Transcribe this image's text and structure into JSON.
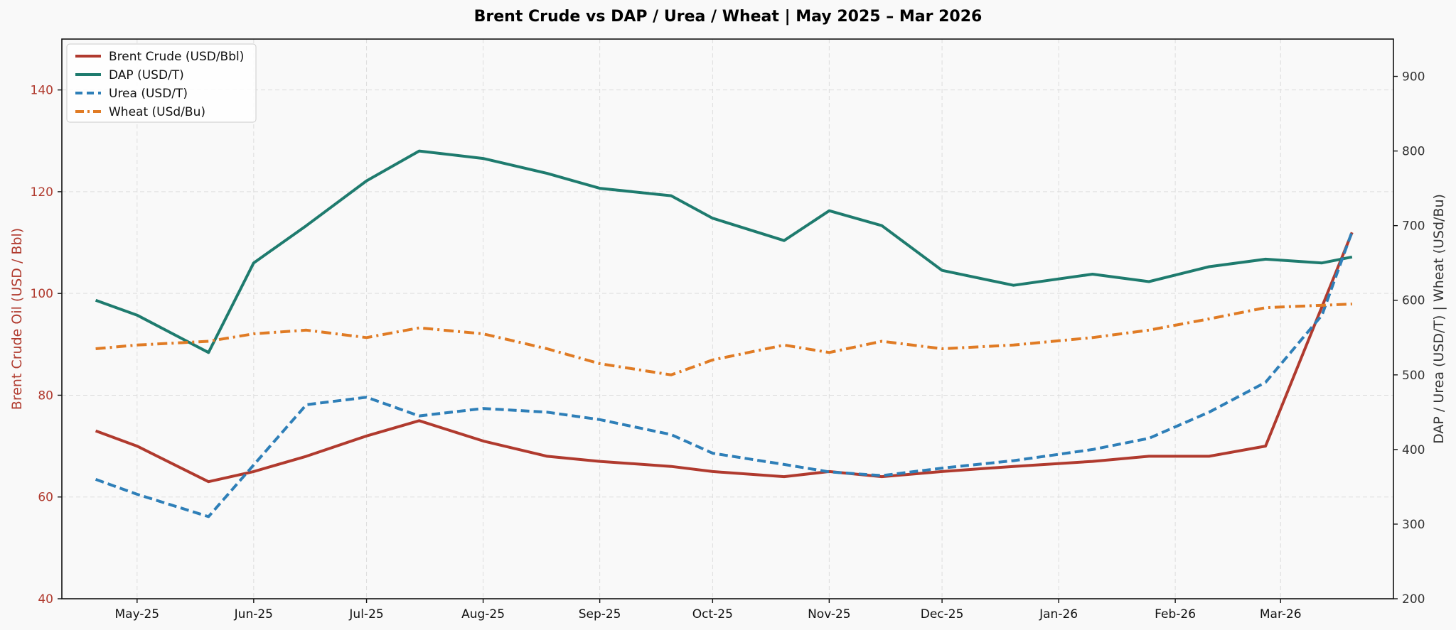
{
  "chart_data": {
    "type": "line",
    "title": "Brent Crude vs DAP / Urea / Wheat  |  May 2025 – Mar 2026",
    "xlabel": "",
    "ylabel_left": "Brent Crude Oil (USD / Bbl)",
    "ylabel_right": "DAP / Urea (USD/T)  |  Wheat (USd/Bu)",
    "ylim_left": [
      40,
      150
    ],
    "ylim_right": [
      200,
      950
    ],
    "yticks_left": [
      40,
      60,
      80,
      100,
      120,
      140
    ],
    "yticks_right": [
      200,
      300,
      400,
      500,
      600,
      700,
      800,
      900
    ],
    "xlim": [
      "2025-04-11",
      "2026-03-31"
    ],
    "xticks": [
      {
        "date": "2025-05-01",
        "label": "May-25"
      },
      {
        "date": "2025-06-01",
        "label": "Jun-25"
      },
      {
        "date": "2025-07-01",
        "label": "Jul-25"
      },
      {
        "date": "2025-08-01",
        "label": "Aug-25"
      },
      {
        "date": "2025-09-01",
        "label": "Sep-25"
      },
      {
        "date": "2025-10-01",
        "label": "Oct-25"
      },
      {
        "date": "2025-11-01",
        "label": "Nov-25"
      },
      {
        "date": "2025-12-01",
        "label": "Dec-25"
      },
      {
        "date": "2026-01-01",
        "label": "Jan-26"
      },
      {
        "date": "2026-02-01",
        "label": "Feb-26"
      },
      {
        "date": "2026-03-01",
        "label": "Mar-26"
      }
    ],
    "grid": true,
    "legend_position": "top-left",
    "series": [
      {
        "name": "Brent Crude (USD/Bbl)",
        "axis": "left",
        "color": "#b03a2e",
        "style": "solid",
        "x": [
          "2025-04-20",
          "2025-05-01",
          "2025-05-20",
          "2025-06-01",
          "2025-06-15",
          "2025-07-01",
          "2025-07-15",
          "2025-08-01",
          "2025-08-18",
          "2025-09-01",
          "2025-09-20",
          "2025-10-01",
          "2025-10-20",
          "2025-11-01",
          "2025-11-15",
          "2025-12-01",
          "2025-12-20",
          "2026-01-10",
          "2026-01-25",
          "2026-02-10",
          "2026-02-25",
          "2026-03-20"
        ],
        "values": [
          73,
          70,
          63,
          65,
          68,
          72,
          75,
          71,
          68,
          67,
          66,
          65,
          64,
          65,
          64,
          65,
          66,
          67,
          68,
          68,
          70,
          112
        ]
      },
      {
        "name": "DAP (USD/T)",
        "axis": "right",
        "color": "#1e7b6e",
        "style": "solid",
        "x": [
          "2025-04-20",
          "2025-05-01",
          "2025-05-20",
          "2025-06-01",
          "2025-06-15",
          "2025-07-01",
          "2025-07-15",
          "2025-08-01",
          "2025-08-18",
          "2025-09-01",
          "2025-09-20",
          "2025-10-01",
          "2025-10-20",
          "2025-11-01",
          "2025-11-15",
          "2025-12-01",
          "2025-12-20",
          "2026-01-10",
          "2026-01-25",
          "2026-02-10",
          "2026-02-25",
          "2026-03-12",
          "2026-03-20"
        ],
        "values": [
          600,
          580,
          530,
          650,
          700,
          760,
          800,
          790,
          770,
          750,
          740,
          710,
          680,
          720,
          700,
          640,
          620,
          635,
          625,
          645,
          655,
          650,
          658
        ]
      },
      {
        "name": "Urea (USD/T)",
        "axis": "right",
        "color": "#2e7fb8",
        "style": "dashed",
        "x": [
          "2025-04-20",
          "2025-05-01",
          "2025-05-20",
          "2025-06-15",
          "2025-07-01",
          "2025-07-15",
          "2025-08-01",
          "2025-08-18",
          "2025-09-01",
          "2025-09-20",
          "2025-10-01",
          "2025-10-20",
          "2025-11-01",
          "2025-11-15",
          "2025-12-01",
          "2025-12-20",
          "2026-01-10",
          "2026-01-25",
          "2026-02-10",
          "2026-02-25",
          "2026-03-12",
          "2026-03-20"
        ],
        "values": [
          360,
          340,
          310,
          460,
          470,
          445,
          455,
          450,
          440,
          420,
          395,
          380,
          370,
          365,
          375,
          385,
          400,
          415,
          450,
          490,
          580,
          692
        ]
      },
      {
        "name": "Wheat (USd/Bu)",
        "axis": "right",
        "color": "#e07b24",
        "style": "dashdot",
        "x": [
          "2025-04-20",
          "2025-05-01",
          "2025-05-20",
          "2025-06-01",
          "2025-06-15",
          "2025-07-01",
          "2025-07-15",
          "2025-08-01",
          "2025-08-18",
          "2025-09-01",
          "2025-09-20",
          "2025-10-01",
          "2025-10-20",
          "2025-11-01",
          "2025-11-15",
          "2025-12-01",
          "2025-12-20",
          "2026-01-10",
          "2026-01-25",
          "2026-02-10",
          "2026-02-25",
          "2026-03-20"
        ],
        "values": [
          535,
          540,
          545,
          555,
          560,
          550,
          563,
          555,
          535,
          515,
          500,
          520,
          540,
          530,
          545,
          535,
          540,
          550,
          560,
          575,
          590,
          595
        ]
      }
    ]
  }
}
